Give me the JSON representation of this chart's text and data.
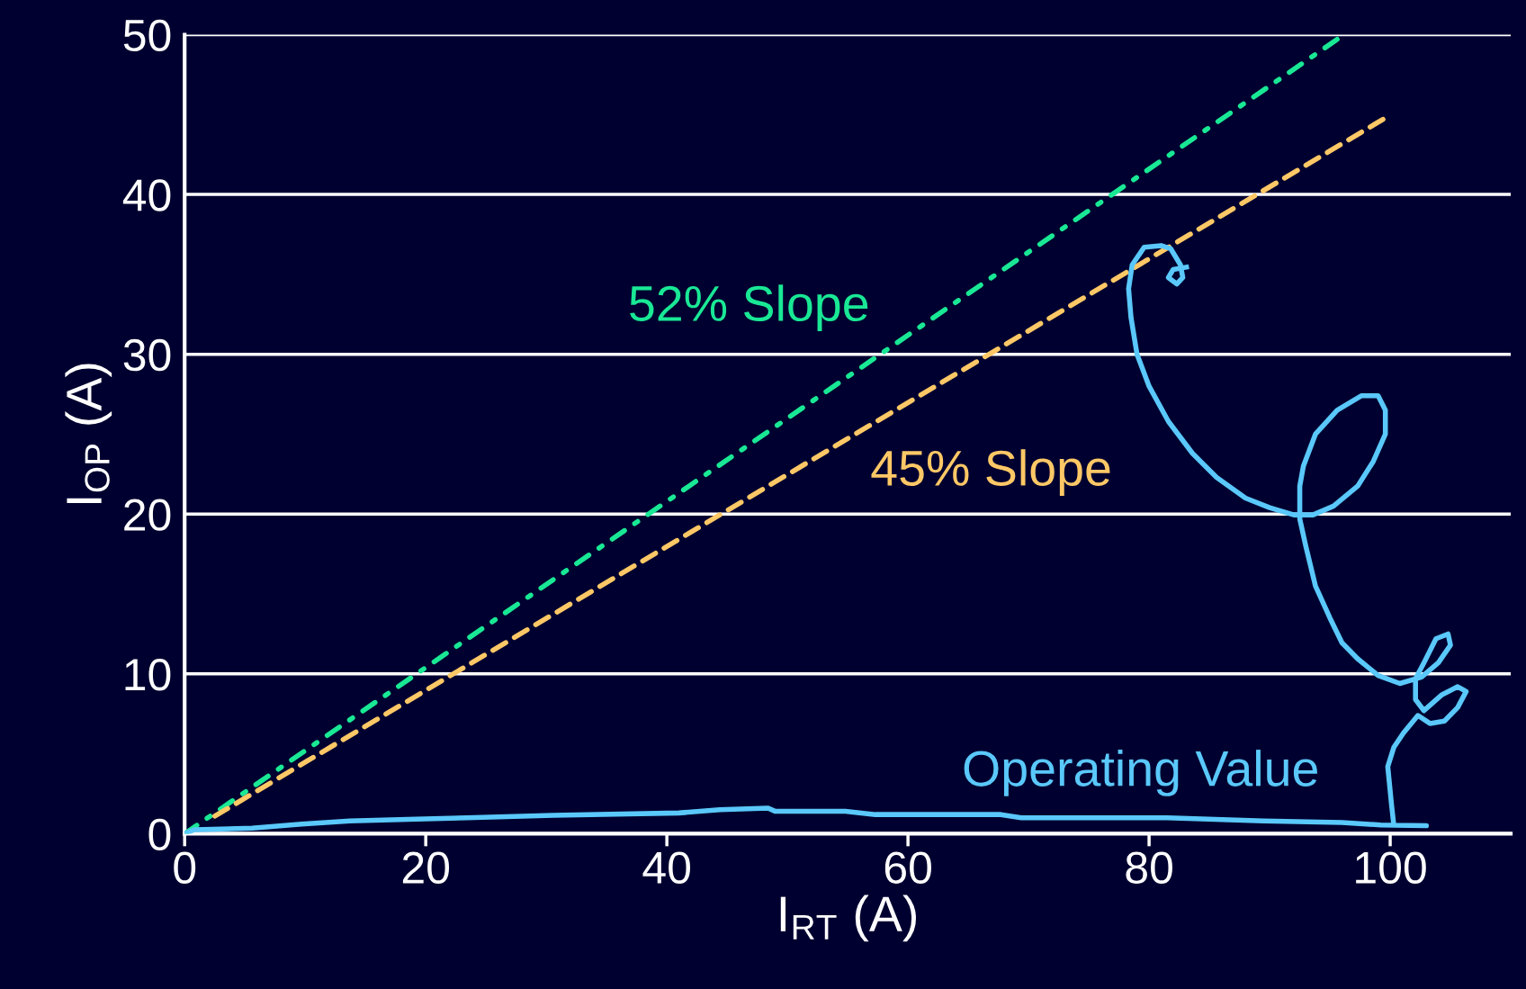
{
  "chart_data": {
    "type": "line",
    "xlabel": "I$_{RT}$ (A)",
    "ylabel": "I$_{OP}$ (A)",
    "xlim": [
      0,
      110
    ],
    "xticks": [
      0,
      20,
      40,
      60,
      80,
      100
    ],
    "ylim": [
      0,
      50
    ],
    "yticks": [
      0,
      10,
      20,
      30,
      40,
      50
    ],
    "grid": "y",
    "legend": false,
    "marker": "none",
    "series": [
      {
        "name": "52% Slope",
        "color": "#19e895",
        "line_style": "dashdot",
        "x": [
          0,
          95.6
        ],
        "values": [
          0,
          49.7
        ]
      },
      {
        "name": "45% Slope",
        "color": "#ffc866",
        "line_style": "dashed",
        "x": [
          2.5,
          99.4
        ],
        "values": [
          1.1,
          44.7
        ]
      },
      {
        "name": "Operating Value",
        "color": "#5ac8fa",
        "line_style": "solid",
        "x": [
          0,
          0.8,
          5.6,
          9.7,
          13.7,
          18.5,
          23.4,
          30.6,
          41,
          44.4,
          48.4,
          49,
          54.8,
          57.3,
          67.7,
          69.4,
          81.5,
          89.5,
          96,
          99.2,
          103,
          100.3,
          100.1,
          99.8,
          100.3,
          101.1,
          102.3,
          103.3,
          104.5,
          105.6,
          106.3,
          105.6,
          104.3,
          102.8,
          102.1,
          102.1,
          102.8,
          103.8,
          104.8,
          105,
          104,
          102.6,
          100.8,
          99,
          97.3,
          96,
          95,
          93.8,
          93,
          92.5,
          92.5,
          92.8,
          93.8,
          95.6,
          97.6,
          99,
          99.6,
          99.6,
          98.6,
          97.3,
          95.3,
          93.6,
          92,
          90,
          88,
          85.6,
          83.6,
          81.6,
          80,
          79,
          78.5,
          78.3,
          78.6,
          79.6,
          81,
          81.8,
          82.6,
          82.8,
          82.3,
          81.6,
          82,
          83.1
        ],
        "values": [
          0,
          0.25,
          0.35,
          0.6,
          0.8,
          0.9,
          1.0,
          1.15,
          1.3,
          1.5,
          1.6,
          1.4,
          1.4,
          1.2,
          1.2,
          1.0,
          1.0,
          0.8,
          0.7,
          0.55,
          0.5,
          0.53,
          1.9,
          4.2,
          5.4,
          6.3,
          7.4,
          6.9,
          7.05,
          7.9,
          8.9,
          9.2,
          8.7,
          7.7,
          8.4,
          9.7,
          10.7,
          12.2,
          12.5,
          11.8,
          10.7,
          9.8,
          9.4,
          9.9,
          10.95,
          11.95,
          13.5,
          15.5,
          18,
          19.7,
          21.75,
          23,
          25,
          26.5,
          27.4,
          27.4,
          26.5,
          25,
          23.3,
          21.75,
          20.5,
          19.95,
          19.95,
          20.4,
          21,
          22.3,
          23.8,
          25.8,
          28,
          30,
          32.3,
          34.1,
          35.6,
          36.7,
          36.8,
          36.6,
          35.6,
          34.8,
          34.4,
          34.8,
          35.3,
          35.45
        ]
      }
    ]
  }
}
